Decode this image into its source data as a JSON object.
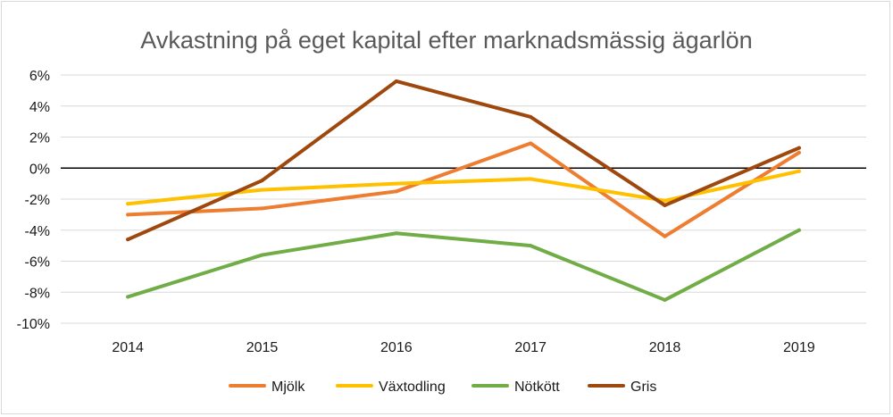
{
  "chart_data": {
    "type": "line",
    "title": "Avkastning på eget kapital efter marknadsmässig ägarlön",
    "xlabel": "",
    "ylabel": "",
    "categories": [
      "2014",
      "2015",
      "2016",
      "2017",
      "2018",
      "2019"
    ],
    "y_tick_values": [
      6,
      4,
      2,
      0,
      -2,
      -4,
      -6,
      -8,
      -10
    ],
    "y_tick_labels": [
      "6%",
      "4%",
      "2%",
      "0%",
      "-2%",
      "-4%",
      "-6%",
      "-8%",
      "-10%"
    ],
    "ylim": [
      -10,
      6
    ],
    "grid": true,
    "legend_position": "bottom",
    "series": [
      {
        "name": "Mjölk",
        "color": "#ED7D31",
        "values": [
          -3.0,
          -2.6,
          -1.5,
          1.6,
          -4.4,
          1.0
        ]
      },
      {
        "name": "Växtodling",
        "color": "#FFC000",
        "values": [
          -2.3,
          -1.4,
          -1.0,
          -0.7,
          -2.1,
          -0.2
        ]
      },
      {
        "name": "Nötkött",
        "color": "#70AD47",
        "values": [
          -8.3,
          -5.6,
          -4.2,
          -5.0,
          -8.5,
          -4.0
        ]
      },
      {
        "name": "Gris",
        "color": "#9E480E",
        "values": [
          -4.6,
          -0.8,
          5.6,
          3.3,
          -2.4,
          1.3
        ]
      }
    ]
  }
}
